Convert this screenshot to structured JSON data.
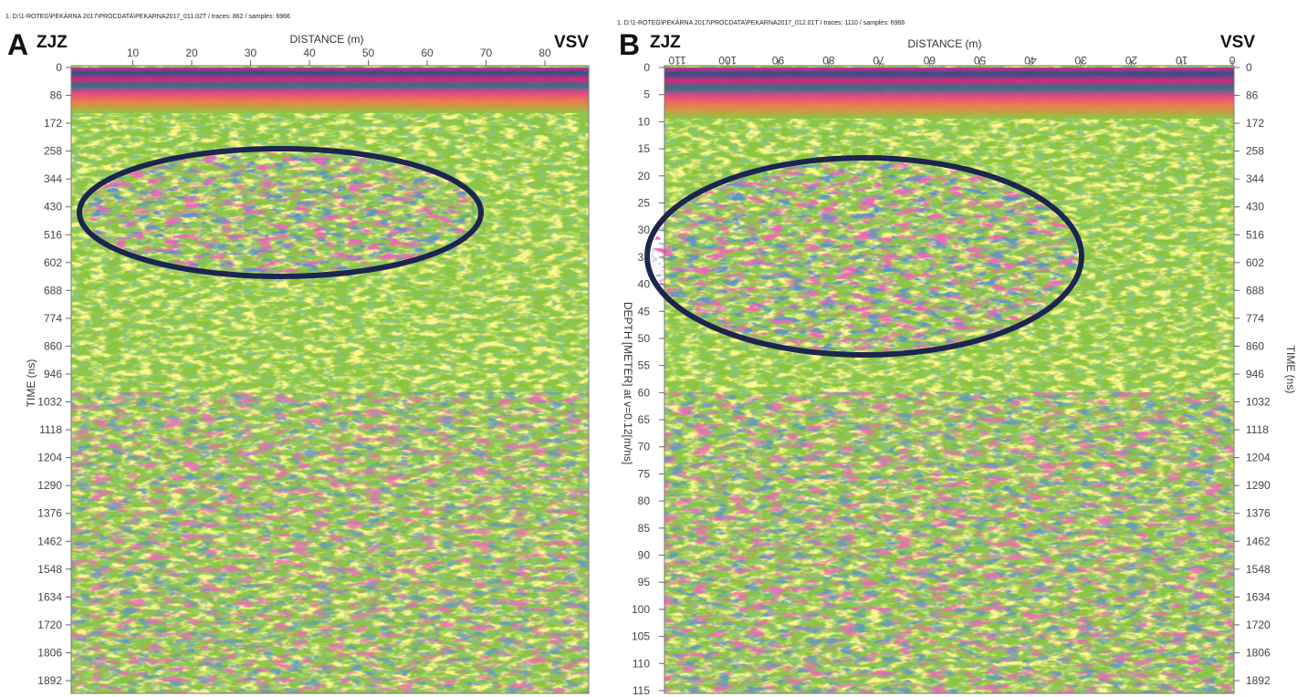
{
  "panels": [
    {
      "label": "A",
      "file": "1. D:\\1-ROTEG\\PEKÁRNA 2017\\PROCDATA\\PEKARNA2017_011.02T / traces: 862 / samples: 6966",
      "left": "ZJZ",
      "right": "VSV",
      "x_axis_title": "DISTANCE (m)",
      "x_ticks": [
        10,
        20,
        30,
        40,
        50,
        60,
        70,
        80
      ],
      "y_axis_title": "TIME (ns)",
      "y_ticks": [
        0,
        86,
        172,
        258,
        344,
        430,
        516,
        602,
        688,
        774,
        860,
        946,
        1032,
        1118,
        1204,
        1290,
        1376,
        1462,
        1548,
        1634,
        1720,
        1806,
        1892
      ]
    },
    {
      "label": "B",
      "file": "1. D:\\1-ROTEG\\PEKÁRNA 2017\\PROCDATA\\PEKARNA2017_012.01T / traces: 1110 / samples: 6966",
      "left": "ZJZ",
      "right": "VSV",
      "x_axis_title": "DISTANCE (m)",
      "x_ticks": [
        110,
        100,
        90,
        80,
        70,
        60,
        50,
        40,
        30,
        20,
        10,
        0
      ],
      "depth_axis_title": "DEPTH [METER] at v=0.12[m/ns]",
      "depth_ticks": [
        0,
        5,
        10,
        15,
        20,
        25,
        30,
        35,
        40,
        45,
        50,
        55,
        60,
        65,
        70,
        75,
        80,
        85,
        90,
        95,
        100,
        105,
        110,
        115
      ],
      "time_axis_title": "TIME (ns)",
      "time_ticks": [
        0,
        86,
        172,
        258,
        344,
        430,
        516,
        602,
        688,
        774,
        860,
        946,
        1032,
        1118,
        1204,
        1290,
        1376,
        1462,
        1548,
        1634,
        1720,
        1806,
        1892
      ]
    }
  ]
}
